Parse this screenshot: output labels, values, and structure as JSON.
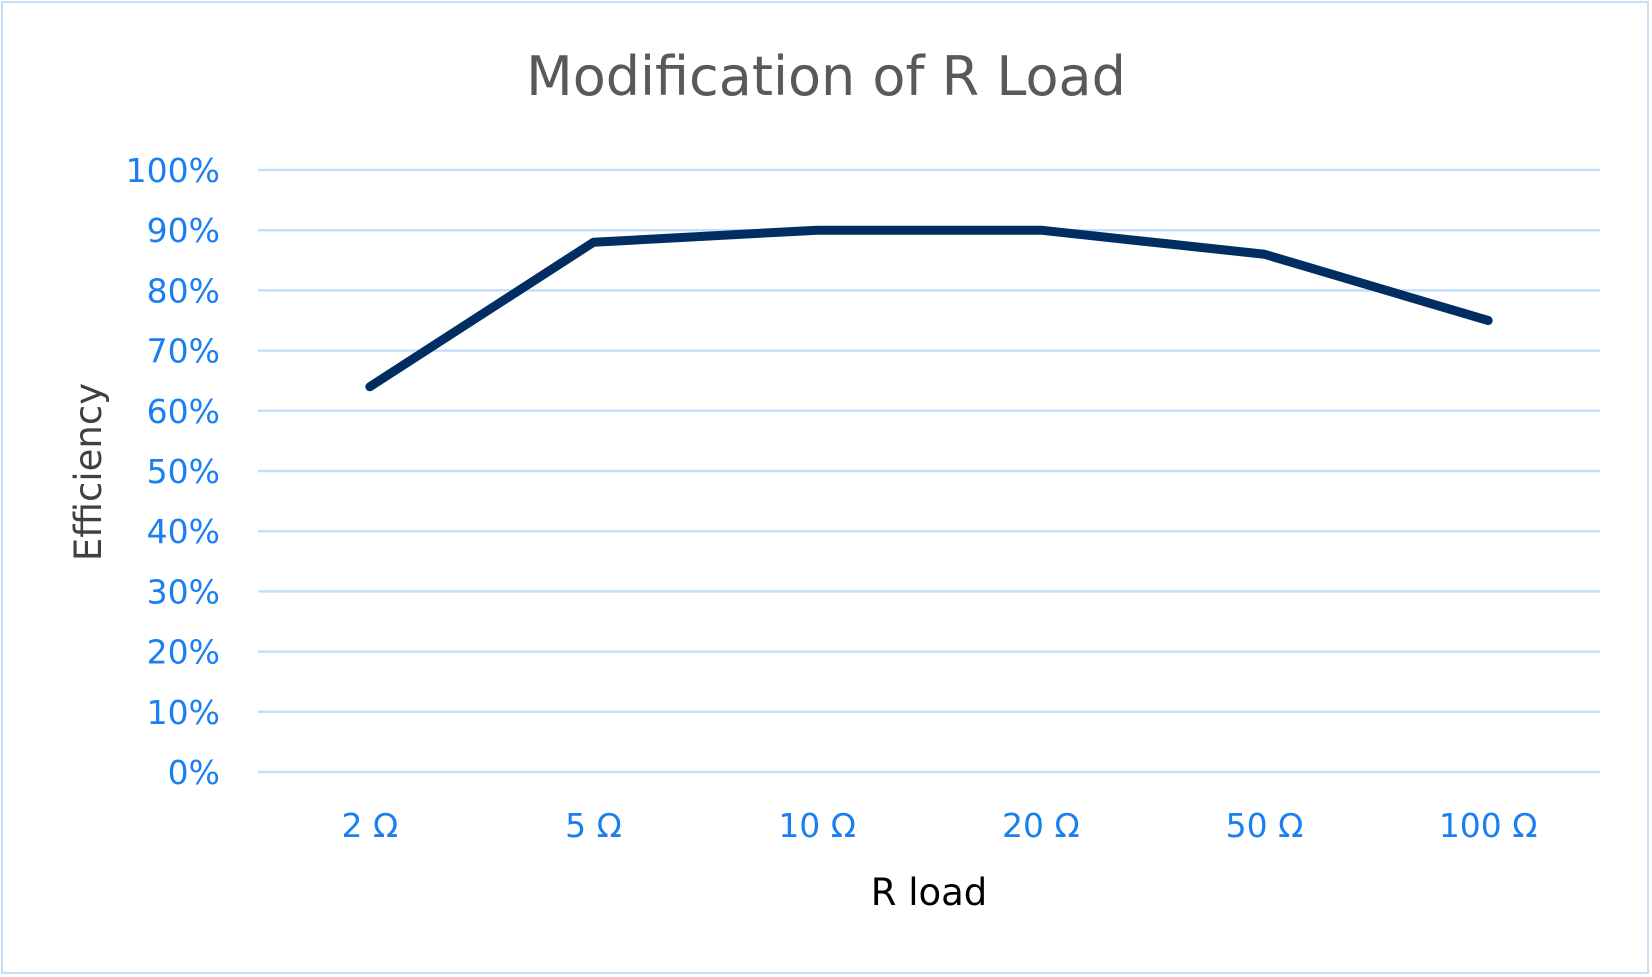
{
  "chart_data": {
    "type": "line",
    "title": "Modification of R Load",
    "xlabel": "R load",
    "ylabel": "Efficiency",
    "categories": [
      "2 Ω",
      "5 Ω",
      "10 Ω",
      "20 Ω",
      "50 Ω",
      "100 Ω"
    ],
    "series": [
      {
        "name": "Efficiency",
        "values": [
          0.64,
          0.88,
          0.9,
          0.9,
          0.86,
          0.75
        ],
        "color": "#002d62"
      }
    ],
    "ylim": [
      0,
      1
    ],
    "yticks": [
      "0%",
      "10%",
      "20%",
      "30%",
      "40%",
      "50%",
      "60%",
      "70%",
      "80%",
      "90%",
      "100%"
    ],
    "grid": true,
    "legend": "none",
    "colors": {
      "tick": "#1a7ff0",
      "grid": "#c5dff8",
      "title": "#595959"
    }
  }
}
